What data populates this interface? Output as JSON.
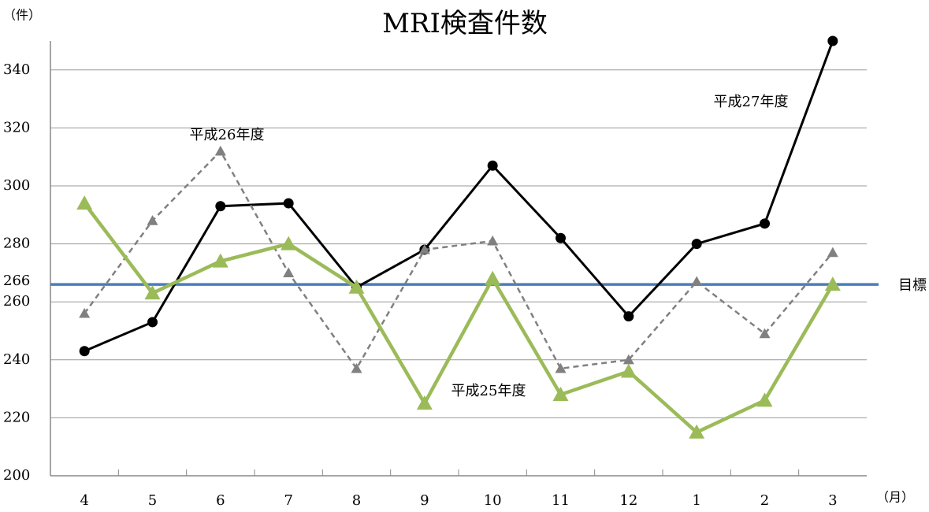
{
  "chart_data": {
    "type": "line",
    "title": "MRI検査件数",
    "y_unit": "（件）",
    "x_unit": "（月）",
    "categories": [
      "4",
      "5",
      "6",
      "7",
      "8",
      "9",
      "10",
      "11",
      "12",
      "1",
      "2",
      "3"
    ],
    "series": [
      {
        "name": "平成27年度",
        "color": "#000000",
        "marker": "circle",
        "dash": false,
        "values": [
          243,
          253,
          293,
          294,
          265,
          278,
          307,
          282,
          255,
          280,
          287,
          350
        ]
      },
      {
        "name": "平成26年度",
        "color": "#808080",
        "marker": "triangle",
        "dash": true,
        "values": [
          256,
          288,
          312,
          270,
          237,
          278,
          281,
          237,
          240,
          267,
          249,
          277
        ]
      },
      {
        "name": "平成25年度",
        "color": "#9bbb59",
        "marker": "triangle",
        "dash": false,
        "values": [
          294,
          263,
          274,
          280,
          265,
          225,
          268,
          228,
          236,
          215,
          226,
          266
        ]
      }
    ],
    "target": {
      "value": 266,
      "label": "目標",
      "color": "#4a7ebb"
    },
    "ylim": [
      200,
      350
    ],
    "yticks": [
      200,
      220,
      240,
      260,
      280,
      300,
      320,
      340
    ],
    "grid": true
  }
}
